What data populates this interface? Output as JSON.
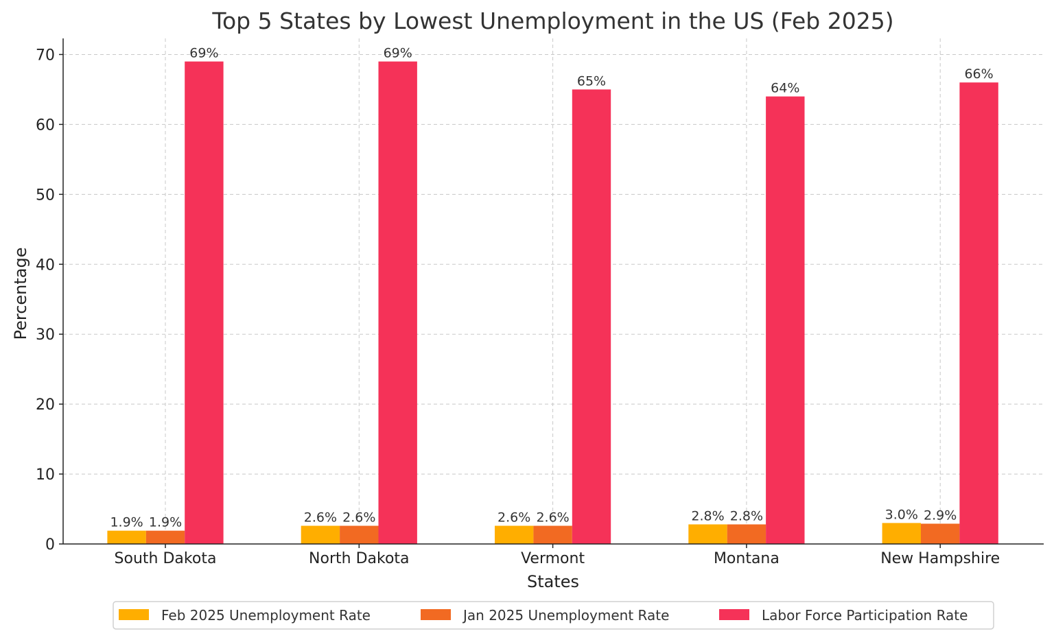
{
  "chart_data": {
    "type": "bar",
    "title": "Top 5 States by Lowest Unemployment in the US (Feb 2025)",
    "xlabel": "States",
    "ylabel": "Percentage",
    "ylim": [
      0,
      72.3
    ],
    "yticks": [
      0,
      10,
      20,
      30,
      40,
      50,
      60,
      70
    ],
    "grid": true,
    "legend_position": "bottom-center",
    "categories": [
      "South Dakota",
      "North Dakota",
      "Vermont",
      "Montana",
      "New Hampshire"
    ],
    "series": [
      {
        "name": "Feb 2025 Unemployment Rate",
        "color": "#FFAE00",
        "values": [
          1.9,
          2.6,
          2.6,
          2.8,
          3.0
        ],
        "labels": [
          "1.9%",
          "2.6%",
          "2.6%",
          "2.8%",
          "3.0%"
        ]
      },
      {
        "name": "Jan 2025 Unemployment Rate",
        "color": "#F26A22",
        "values": [
          1.9,
          2.6,
          2.6,
          2.8,
          2.9
        ],
        "labels": [
          "1.9%",
          "2.6%",
          "2.6%",
          "2.8%",
          "2.9%"
        ]
      },
      {
        "name": "Labor Force Participation Rate",
        "color": "#F53258",
        "values": [
          69,
          69,
          65,
          64,
          66
        ],
        "labels": [
          "69%",
          "69%",
          "65%",
          "64%",
          "66%"
        ]
      }
    ]
  }
}
